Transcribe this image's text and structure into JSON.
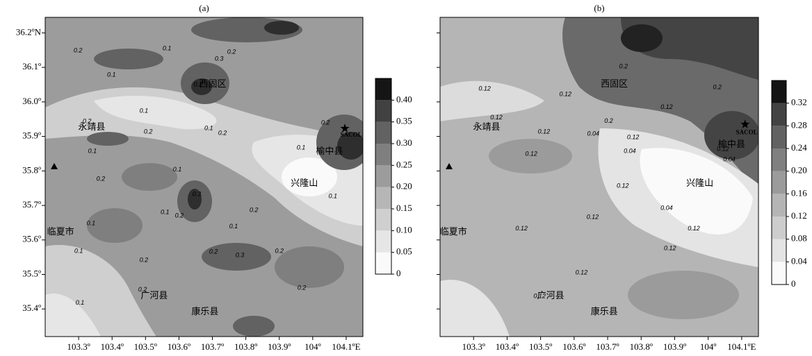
{
  "panels": [
    {
      "label": "(a)",
      "xlim": [
        103.2,
        104.15
      ],
      "ylim": [
        35.32,
        36.245
      ],
      "xticks": [
        {
          "value": 103.3,
          "label": "103.3º"
        },
        {
          "value": 103.4,
          "label": "103.4º"
        },
        {
          "value": 103.5,
          "label": "103.5º"
        },
        {
          "value": 103.6,
          "label": "103.6º"
        },
        {
          "value": 103.7,
          "label": "103.7º"
        },
        {
          "value": 103.8,
          "label": "103.8º"
        },
        {
          "value": 103.9,
          "label": "103.9º"
        },
        {
          "value": 104,
          "label": "104º"
        },
        {
          "value": 104.1,
          "label": "104.1ºE"
        }
      ],
      "yticks": [
        {
          "value": 36.2,
          "label": "36.2ºN"
        },
        {
          "value": 36.1,
          "label": "36.1º"
        },
        {
          "value": 36.0,
          "label": "36.0º"
        },
        {
          "value": 35.9,
          "label": "35.9º"
        },
        {
          "value": 35.8,
          "label": "35.8º"
        },
        {
          "value": 35.7,
          "label": "35.7º"
        },
        {
          "value": 35.6,
          "label": "35.6º"
        },
        {
          "value": 35.5,
          "label": "35.5º"
        },
        {
          "value": 35.4,
          "label": "35.4º"
        }
      ],
      "colorbar": {
        "ticks": [
          0,
          0.05,
          {
            "value": 0.1,
            "label": "0.10"
          },
          0.15,
          {
            "value": 0.2,
            "label": "0.20"
          },
          0.25,
          {
            "value": 0.3,
            "label": "0.30"
          },
          0.35,
          {
            "value": 0.4,
            "label": "0.40"
          }
        ],
        "colors": [
          "#fafafa",
          "#e6e6e6",
          "#cfcfcf",
          "#b6b6b6",
          "#9c9c9c",
          "#7f7f7f",
          "#626262",
          "#414141",
          "#151515"
        ]
      },
      "places": [
        {
          "name": "永靖县",
          "lon": 103.339,
          "lat": 35.925
        },
        {
          "name": "临夏市",
          "lon": 103.246,
          "lat": 35.622
        },
        {
          "name": "广河县",
          "lon": 103.526,
          "lat": 35.437
        },
        {
          "name": "康乐县",
          "lon": 103.678,
          "lat": 35.39
        },
        {
          "name": "兴隆山",
          "lon": 103.975,
          "lat": 35.762
        },
        {
          "name": "榆中县",
          "lon": 104.05,
          "lat": 35.855
        },
        {
          "name": "西固区",
          "lon": 103.701,
          "lat": 36.05
        },
        {
          "name": "SACOL",
          "lon": 104.115,
          "lat": 35.903
        }
      ],
      "station_star": {
        "lon": 104.096,
        "lat": 35.923
      },
      "station_triangle": {
        "lon": 103.227,
        "lat": 35.813
      },
      "contour_labels": [
        {
          "text": "0.2",
          "lon": 103.298,
          "lat": 36.148
        },
        {
          "text": "0.1",
          "lon": 103.564,
          "lat": 36.154
        },
        {
          "text": "0.3",
          "lon": 103.72,
          "lat": 36.124
        },
        {
          "text": "0.2",
          "lon": 103.757,
          "lat": 36.144
        },
        {
          "text": "0.1",
          "lon": 103.398,
          "lat": 36.078
        },
        {
          "text": "0.2",
          "lon": 103.657,
          "lat": 36.05
        },
        {
          "text": "0.1",
          "lon": 103.495,
          "lat": 35.973
        },
        {
          "text": "0.2",
          "lon": 103.325,
          "lat": 35.943
        },
        {
          "text": "0.2",
          "lon": 103.508,
          "lat": 35.913
        },
        {
          "text": "0.1",
          "lon": 103.689,
          "lat": 35.923
        },
        {
          "text": "0.2",
          "lon": 103.73,
          "lat": 35.909
        },
        {
          "text": "0.1",
          "lon": 103.341,
          "lat": 35.857
        },
        {
          "text": "0.1",
          "lon": 103.595,
          "lat": 35.803
        },
        {
          "text": "0.1",
          "lon": 103.965,
          "lat": 35.867
        },
        {
          "text": "0.2",
          "lon": 103.366,
          "lat": 35.776
        },
        {
          "text": "0.3",
          "lon": 103.653,
          "lat": 35.732
        },
        {
          "text": "0.2",
          "lon": 103.824,
          "lat": 35.686
        },
        {
          "text": "0.1",
          "lon": 103.558,
          "lat": 35.68
        },
        {
          "text": "0.2",
          "lon": 103.601,
          "lat": 35.67
        },
        {
          "text": "0.1",
          "lon": 103.763,
          "lat": 35.638
        },
        {
          "text": "0.1",
          "lon": 103.337,
          "lat": 35.648
        },
        {
          "text": "0.1",
          "lon": 103.3,
          "lat": 35.567
        },
        {
          "text": "0.2",
          "lon": 103.495,
          "lat": 35.541
        },
        {
          "text": "0.2",
          "lon": 103.703,
          "lat": 35.565
        },
        {
          "text": "0.3",
          "lon": 103.782,
          "lat": 35.555
        },
        {
          "text": "0.2",
          "lon": 103.9,
          "lat": 35.567
        },
        {
          "text": "0.2",
          "lon": 103.967,
          "lat": 35.461
        },
        {
          "text": "0.2",
          "lon": 103.491,
          "lat": 35.455
        },
        {
          "text": "0.1",
          "lon": 103.304,
          "lat": 35.417
        },
        {
          "text": "0.1",
          "lon": 104.06,
          "lat": 35.726
        },
        {
          "text": "0.2",
          "lon": 104.038,
          "lat": 35.939
        }
      ]
    },
    {
      "label": "(b)",
      "xlim": [
        103.2,
        104.15
      ],
      "ylim": [
        35.32,
        36.245
      ],
      "xticks": [
        {
          "value": 103.3,
          "label": "103.3º"
        },
        {
          "value": 103.4,
          "label": "103.4º"
        },
        {
          "value": 103.5,
          "label": "103.5º"
        },
        {
          "value": 103.6,
          "label": "103.6º"
        },
        {
          "value": 103.7,
          "label": "103.7º"
        },
        {
          "value": 103.8,
          "label": "103.8º"
        },
        {
          "value": 103.9,
          "label": "103.9º"
        },
        {
          "value": 104,
          "label": "104º"
        },
        {
          "value": 104.1,
          "label": "104.1ºE"
        }
      ],
      "ytick_marks": [
        36.2,
        36.1,
        36.0,
        35.9,
        35.8,
        35.7,
        35.6,
        35.5,
        35.4
      ],
      "colorbar": {
        "ticks": [
          0,
          0.04,
          0.08,
          0.12,
          0.16,
          {
            "value": 0.2,
            "label": "0.20"
          },
          0.24,
          0.28,
          0.32
        ],
        "colors": [
          "#fafafa",
          "#e4e4e4",
          "#cdcdcd",
          "#b5b5b5",
          "#9b9b9b",
          "#808080",
          "#626262",
          "#434343",
          "#141414"
        ]
      },
      "places": [
        {
          "name": "永靖县",
          "lon": 103.339,
          "lat": 35.925
        },
        {
          "name": "临夏市",
          "lon": 103.24,
          "lat": 35.622
        },
        {
          "name": "广河县",
          "lon": 103.53,
          "lat": 35.437
        },
        {
          "name": "康乐县",
          "lon": 103.69,
          "lat": 35.39
        },
        {
          "name": "兴隆山",
          "lon": 103.975,
          "lat": 35.762
        },
        {
          "name": "榆中县",
          "lon": 104.07,
          "lat": 35.875
        },
        {
          "name": "西固区",
          "lon": 103.72,
          "lat": 36.05
        },
        {
          "name": "SACOL",
          "lon": 104.115,
          "lat": 35.91
        }
      ],
      "station_star": {
        "lon": 104.11,
        "lat": 35.935
      },
      "station_triangle": {
        "lon": 103.227,
        "lat": 35.813
      },
      "contour_labels": [
        {
          "text": "0.12",
          "lon": 103.333,
          "lat": 36.038
        },
        {
          "text": "0.12",
          "lon": 103.574,
          "lat": 36.022
        },
        {
          "text": "0.2",
          "lon": 103.747,
          "lat": 36.102
        },
        {
          "text": "0.2",
          "lon": 104.027,
          "lat": 36.042
        },
        {
          "text": "0.12",
          "lon": 103.876,
          "lat": 35.984
        },
        {
          "text": "0.12",
          "lon": 103.368,
          "lat": 35.954
        },
        {
          "text": "0.12",
          "lon": 103.51,
          "lat": 35.913
        },
        {
          "text": "0.04",
          "lon": 103.657,
          "lat": 35.907
        },
        {
          "text": "0.12",
          "lon": 103.776,
          "lat": 35.897
        },
        {
          "text": "0.04",
          "lon": 103.766,
          "lat": 35.857
        },
        {
          "text": "0.12",
          "lon": 103.472,
          "lat": 35.849
        },
        {
          "text": "0.12",
          "lon": 103.745,
          "lat": 35.756
        },
        {
          "text": "0.12",
          "lon": 104.044,
          "lat": 35.863
        },
        {
          "text": "0.04",
          "lon": 104.063,
          "lat": 35.833
        },
        {
          "text": "0.12",
          "lon": 103.655,
          "lat": 35.666
        },
        {
          "text": "0.04",
          "lon": 103.876,
          "lat": 35.692
        },
        {
          "text": "0.12",
          "lon": 103.957,
          "lat": 35.632
        },
        {
          "text": "0.12",
          "lon": 103.886,
          "lat": 35.575
        },
        {
          "text": "0.12",
          "lon": 103.443,
          "lat": 35.632
        },
        {
          "text": "0.12",
          "lon": 103.622,
          "lat": 35.505
        },
        {
          "text": "0.12",
          "lon": 103.497,
          "lat": 35.436
        },
        {
          "text": "0.2",
          "lon": 103.703,
          "lat": 35.944
        }
      ]
    }
  ]
}
